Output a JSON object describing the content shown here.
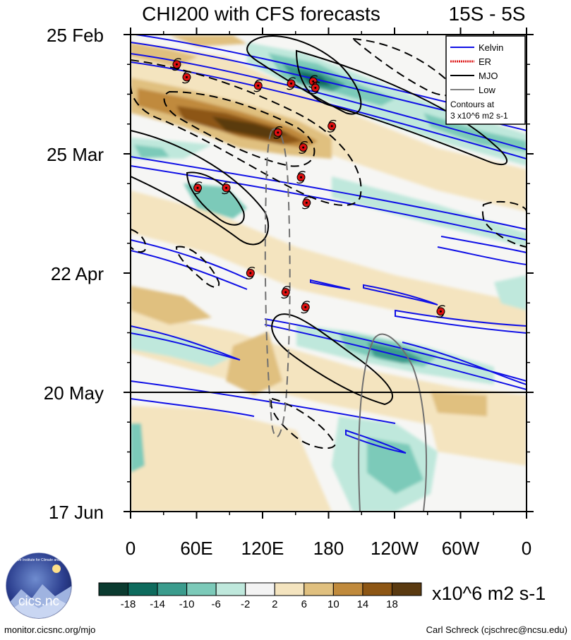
{
  "chart_data": {
    "type": "heatmap",
    "title": "CHI200 with CFS forecasts",
    "region": "15S - 5S",
    "x_ticks": [
      "0",
      "60E",
      "120E",
      "180",
      "120W",
      "60W",
      "0"
    ],
    "x_range": [
      0,
      360
    ],
    "y_ticks": [
      "25 Feb",
      "25 Mar",
      "22 Apr",
      "20 May",
      "17 Jun"
    ],
    "y_range_days": [
      0,
      112
    ],
    "forecast_start": "20 May",
    "colorbar": {
      "unit": "x10^6 m2 s-1",
      "labels": [
        "-18",
        "-14",
        "-10",
        "-6",
        "-2",
        "2",
        "6",
        "10",
        "14",
        "18"
      ],
      "colors": [
        "#0b3b30",
        "#0e6b5d",
        "#3b9c8d",
        "#7ccab9",
        "#bfe8dc",
        "#f3f3f3",
        "#f4e4bf",
        "#e0c07f",
        "#c08a3c",
        "#8d5614",
        "#5a3a10"
      ]
    },
    "legend": {
      "entries": [
        {
          "label": "Kelvin",
          "color": "#1010e6"
        },
        {
          "label": "ER",
          "color": "#dd1a1a"
        },
        {
          "label": "MJO",
          "color": "#000000"
        },
        {
          "label": "Low",
          "color": "#808080"
        }
      ],
      "note_line1": "Contours at",
      "note_line2": "3 x10^6 m2 s-1"
    },
    "cyclones": [
      {
        "lon": 42,
        "day": 7
      },
      {
        "lon": 51,
        "day": 10
      },
      {
        "lon": 116,
        "day": 12
      },
      {
        "lon": 146,
        "day": 11.5
      },
      {
        "lon": 166,
        "day": 11
      },
      {
        "lon": 168,
        "day": 12.5
      },
      {
        "lon": 183,
        "day": 21.5
      },
      {
        "lon": 134,
        "day": 23
      },
      {
        "lon": 157,
        "day": 26.5
      },
      {
        "lon": 155,
        "day": 33.5
      },
      {
        "lon": 61,
        "day": 36
      },
      {
        "lon": 87,
        "day": 36
      },
      {
        "lon": 160,
        "day": 39.5
      },
      {
        "lon": 109,
        "day": 56
      },
      {
        "lon": 141,
        "day": 60.5
      },
      {
        "lon": 159,
        "day": 64
      },
      {
        "lon": 282,
        "day": 65
      }
    ]
  },
  "footer": {
    "logo_text": "cics.nc",
    "logo_ring": "Cooperative Institute for Climate and Satellites",
    "website": "monitor.cicsnc.org/mjo",
    "author": "Carl Schreck (cjschrec@ncsu.edu)"
  }
}
